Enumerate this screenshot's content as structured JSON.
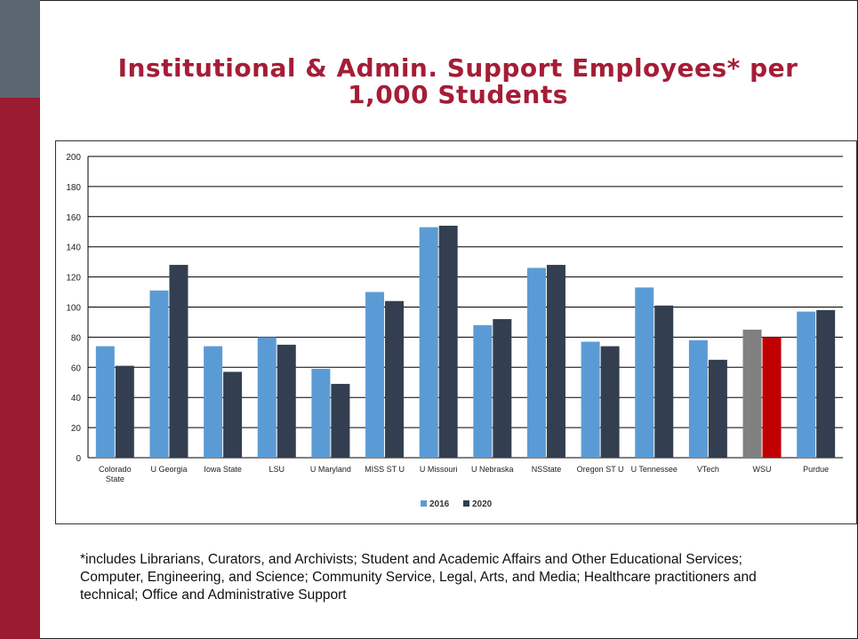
{
  "slide": {
    "title": "Institutional & Admin. Support Employees* per 1,000 Students",
    "footnote": "*includes Librarians, Curators, and Archivists; Student and Academic Affairs and Other Educational Services; Computer, Engineering, and Science; Community Service, Legal, Arts, and Media; Healthcare practitioners and technical; Office and Administrative Support"
  },
  "colors": {
    "series_2016": "#5b9bd5",
    "series_2020": "#333f50",
    "wsu_2016": "#808080",
    "wsu_2020": "#c00000",
    "title": "#a51d36",
    "sidebar_red": "#9b1b30",
    "sidebar_gray": "#5b6670"
  },
  "chart_data": {
    "type": "bar",
    "title": "",
    "xlabel": "",
    "ylabel": "",
    "ylim": [
      0,
      200
    ],
    "yticks": [
      0,
      20,
      40,
      60,
      80,
      100,
      120,
      140,
      160,
      180,
      200
    ],
    "grid": true,
    "legend_position": "bottom",
    "categories": [
      "Colorado State",
      "U Georgia",
      "Iowa State",
      "LSU",
      "U Maryland",
      "MISS ST U",
      "U Missouri",
      "U Nebraska",
      "NSState",
      "Oregon ST U",
      "U Tennessee",
      "VTech",
      "WSU",
      "Purdue"
    ],
    "series": [
      {
        "name": "2016",
        "values": [
          74,
          111,
          74,
          80,
          59,
          110,
          153,
          88,
          126,
          77,
          113,
          78,
          85,
          97
        ]
      },
      {
        "name": "2020",
        "values": [
          61,
          128,
          57,
          75,
          49,
          104,
          154,
          92,
          128,
          74,
          101,
          65,
          80,
          98
        ]
      }
    ],
    "highlight_category": "WSU"
  }
}
